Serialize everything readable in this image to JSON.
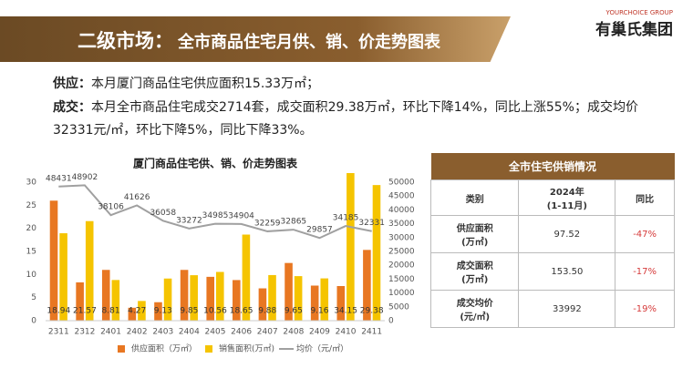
{
  "header": {
    "title_prefix": "二级市场：",
    "title": "全市商品住宅月供、销、价走势图表",
    "logo_en": "YOURCHOICE GROUP",
    "logo_cn": "有巢氏集团"
  },
  "text": {
    "supply": {
      "label": "供应：",
      "body": "本月厦门商品住宅供应面积15.33万㎡；"
    },
    "deal": {
      "label": "成交：",
      "body": "本月全市商品住宅成交2714套，成交面积29.38万㎡，环比下降14%，同比上涨55%；成交均价32331元/㎡，环比下降5%，同比下降33%。"
    }
  },
  "chart_data": {
    "type": "bar",
    "title": "厦门商品住宅供、销、价走势图表",
    "categories": [
      "2311",
      "2312",
      "2401",
      "2402",
      "2403",
      "2404",
      "2405",
      "2406",
      "2407",
      "2408",
      "2409",
      "2410",
      "2411"
    ],
    "series": [
      {
        "name": "供应面积（万㎡）",
        "color": "#e87722",
        "values": [
          26,
          8.3,
          11,
          2.8,
          4,
          11,
          9.5,
          8.8,
          7,
          12.5,
          7.6,
          7.5,
          15.33
        ]
      },
      {
        "name": "销售面积(万㎡)",
        "color": "#f5c400",
        "values": [
          18.94,
          21.57,
          8.81,
          4.27,
          9.13,
          9.85,
          10.56,
          18.65,
          9.88,
          9.65,
          9.16,
          34.15,
          29.38
        ]
      },
      {
        "name": "均价（元/㎡）",
        "color": "#a0a0a0",
        "type": "line",
        "axis": "y2",
        "values": [
          48431,
          48902,
          38106,
          41626,
          36058,
          33272,
          34985,
          34904,
          32259,
          32865,
          29857,
          34185,
          32331
        ]
      }
    ],
    "ylim": [
      0,
      30
    ],
    "yticks": [
      0,
      5,
      10,
      15,
      20,
      25,
      30
    ],
    "y2lim": [
      0,
      50000
    ],
    "y2ticks": [
      0,
      5000,
      10000,
      15000,
      20000,
      25000,
      30000,
      35000,
      40000,
      45000,
      50000
    ],
    "legend": "bottom"
  },
  "table": {
    "title": "全市住宅供销情况",
    "columns": [
      "类别",
      "2024年\n(1-11月)",
      "同比"
    ],
    "rows": [
      [
        "供应面积\n(万㎡)",
        "97.52",
        "-47%"
      ],
      [
        "成交面积\n(万㎡)",
        "153.50",
        "-17%"
      ],
      [
        "成交均价\n(元/㎡)",
        "33992",
        "-19%"
      ]
    ]
  }
}
